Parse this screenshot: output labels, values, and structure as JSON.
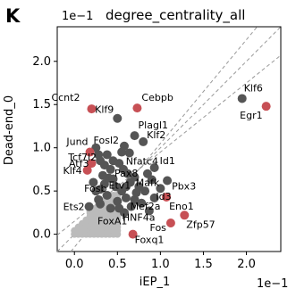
{
  "figure": {
    "panel_letter": "K",
    "title": "degree_centrality_all",
    "x_multiplier": "1e−1",
    "y_multiplier": "1e−1"
  },
  "chart_data": {
    "type": "scatter",
    "title": "degree_centrality_all",
    "xlabel": "iEP_1",
    "ylabel": "Dead-end_0",
    "xlim": [
      -0.2,
      2.4
    ],
    "ylim": [
      -0.2,
      2.4
    ],
    "xticks": [
      "0.0",
      "0.5",
      "1.0",
      "1.5",
      "2.0"
    ],
    "yticks": [
      "0.0",
      "0.5",
      "1.0",
      "1.5",
      "2.0"
    ],
    "x_tick_values": [
      0.0,
      0.5,
      1.0,
      1.5,
      2.0
    ],
    "y_tick_values": [
      0.0,
      0.5,
      1.0,
      1.5,
      2.0
    ],
    "scale_factor": "1e-1",
    "grid": false,
    "reference_lines": [
      {
        "slope": 1,
        "intercept": 0,
        "style": "dashed"
      },
      {
        "slope": 0.8,
        "intercept": 0.15,
        "style": "dashed"
      },
      {
        "slope": 1.2,
        "intercept": -0.15,
        "style": "dashed"
      }
    ],
    "colors": {
      "highlight": "#c75055",
      "labeled": "#555555",
      "background": "#bbbbbb",
      "reference_line": "#999999"
    },
    "series": [
      {
        "group": "highlighted",
        "points": [
          {
            "label": "Ccnt2",
            "x": 0.2,
            "y": 1.45
          },
          {
            "label": "Cebpb",
            "x": 0.73,
            "y": 1.46
          },
          {
            "label": "Egr1",
            "x": 2.23,
            "y": 1.48
          },
          {
            "label": "Jund",
            "x": 0.18,
            "y": 0.95
          },
          {
            "label": "Atf3",
            "x": 0.2,
            "y": 0.82
          },
          {
            "label": "Klf4",
            "x": 0.15,
            "y": 0.74
          },
          {
            "label": "Eno1",
            "x": 1.07,
            "y": 0.43
          },
          {
            "label": "Zfp57",
            "x": 1.28,
            "y": 0.22
          },
          {
            "label": "Fos",
            "x": 1.12,
            "y": 0.13
          },
          {
            "label": "Foxq1",
            "x": 0.68,
            "y": 0.0
          }
        ]
      },
      {
        "group": "labeled",
        "points": [
          {
            "label": "Klf6",
            "x": 1.95,
            "y": 1.57
          },
          {
            "label": "Klf9",
            "x": 0.5,
            "y": 1.34
          },
          {
            "label": "Plagl1",
            "x": 0.7,
            "y": 1.14
          },
          {
            "label": "Fosl2",
            "x": 0.58,
            "y": 1.02
          },
          {
            "label": "Klf2",
            "x": 0.8,
            "y": 1.07
          },
          {
            "label": "Nfatc4",
            "x": 0.64,
            "y": 0.94
          },
          {
            "label": "Tcf7l2",
            "x": 0.3,
            "y": 0.85
          },
          {
            "label": "Pax8",
            "x": 0.57,
            "y": 0.75
          },
          {
            "label": "Id1",
            "x": 0.93,
            "y": 0.77
          },
          {
            "label": "Mafk",
            "x": 0.9,
            "y": 0.63
          },
          {
            "label": "Pbx3",
            "x": 1.08,
            "y": 0.62
          },
          {
            "label": "Etv1",
            "x": 0.45,
            "y": 0.64
          },
          {
            "label": "Id3",
            "x": 1.0,
            "y": 0.53
          },
          {
            "label": "Fosb",
            "x": 0.3,
            "y": 0.52
          },
          {
            "label": "Ets2",
            "x": 0.17,
            "y": 0.32
          },
          {
            "label": "Mef2a",
            "x": 0.93,
            "y": 0.42
          },
          {
            "label": "HNF4a",
            "x": 0.87,
            "y": 0.27
          },
          {
            "label": "FoxA1",
            "x": 0.58,
            "y": 0.25
          }
        ]
      },
      {
        "group": "unlabeled",
        "points": [
          {
            "x": 0.25,
            "y": 1.0
          },
          {
            "x": 0.28,
            "y": 0.92
          },
          {
            "x": 0.35,
            "y": 0.8
          },
          {
            "x": 0.45,
            "y": 0.85
          },
          {
            "x": 0.42,
            "y": 0.75
          },
          {
            "x": 0.52,
            "y": 0.82
          },
          {
            "x": 0.62,
            "y": 0.7
          },
          {
            "x": 0.7,
            "y": 0.66
          },
          {
            "x": 0.75,
            "y": 0.55
          },
          {
            "x": 0.65,
            "y": 0.6
          },
          {
            "x": 0.82,
            "y": 0.5
          },
          {
            "x": 0.55,
            "y": 0.5
          },
          {
            "x": 0.6,
            "y": 0.42
          },
          {
            "x": 0.7,
            "y": 0.4
          },
          {
            "x": 0.78,
            "y": 0.36
          },
          {
            "x": 0.5,
            "y": 0.38
          },
          {
            "x": 0.35,
            "y": 0.58
          },
          {
            "x": 0.38,
            "y": 0.45
          },
          {
            "x": 0.28,
            "y": 0.4
          },
          {
            "x": 0.42,
            "y": 0.3
          },
          {
            "x": 0.66,
            "y": 0.32
          },
          {
            "x": 0.6,
            "y": 0.55
          },
          {
            "x": 0.72,
            "y": 0.48
          },
          {
            "x": 0.48,
            "y": 0.55
          },
          {
            "x": 0.4,
            "y": 0.65
          },
          {
            "x": 0.33,
            "y": 0.68
          },
          {
            "x": 0.22,
            "y": 0.6
          },
          {
            "x": 0.85,
            "y": 0.7
          },
          {
            "x": 0.55,
            "y": 0.95
          },
          {
            "x": 0.38,
            "y": 0.92
          },
          {
            "x": 0.25,
            "y": 0.5
          },
          {
            "x": 0.3,
            "y": 0.35
          },
          {
            "x": 0.52,
            "y": 0.3
          }
        ]
      },
      {
        "group": "background",
        "region": {
          "x": [
            0.0,
            0.5
          ],
          "y": [
            0.0,
            0.45
          ]
        }
      }
    ]
  }
}
